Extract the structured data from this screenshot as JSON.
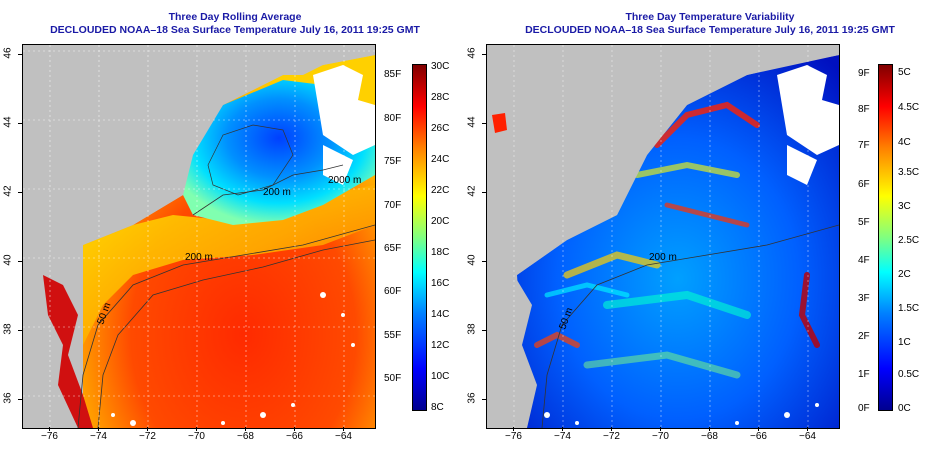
{
  "panels": [
    {
      "title_line1": "Three Day Rolling Average",
      "title_line2": "DECLOUDED NOAA–18 Sea Surface Temperature July 16, 2011 19:25 GMT",
      "contour_labels": [
        "2000 m",
        "200 m",
        "50 m",
        "200 m"
      ],
      "colorbar": {
        "fahrenheit": [
          "85F",
          "80F",
          "75F",
          "70F",
          "65F",
          "60F",
          "55F",
          "50F"
        ],
        "celsius": [
          "30C",
          "28C",
          "26C",
          "24C",
          "22C",
          "20C",
          "18C",
          "16C",
          "14C",
          "12C",
          "10C",
          "8C"
        ]
      }
    },
    {
      "title_line1": "Three Day Temperature Variability",
      "title_line2": "DECLOUDED NOAA–18 Sea Surface Temperature July 16, 2011 19:25 GMT",
      "contour_labels": [
        "200 m",
        "50 m"
      ],
      "colorbar": {
        "fahrenheit": [
          "9F",
          "8F",
          "7F",
          "6F",
          "5F",
          "4F",
          "3F",
          "2F",
          "1F",
          "0F"
        ],
        "celsius": [
          "5C",
          "4.5C",
          "4C",
          "3.5C",
          "3C",
          "2.5C",
          "2C",
          "1.5C",
          "1C",
          "0.5C",
          "0C"
        ]
      }
    }
  ],
  "axes": {
    "lon_ticks": [
      "−76",
      "−74",
      "−72",
      "−70",
      "−68",
      "−66",
      "−64"
    ],
    "lat_ticks": [
      "46",
      "44",
      "42",
      "40",
      "38",
      "36"
    ]
  },
  "colors": {
    "title": "#1a1aa6",
    "land": "#c0c0c0",
    "warm": "#ff2a00",
    "cool": "#0050ff"
  }
}
